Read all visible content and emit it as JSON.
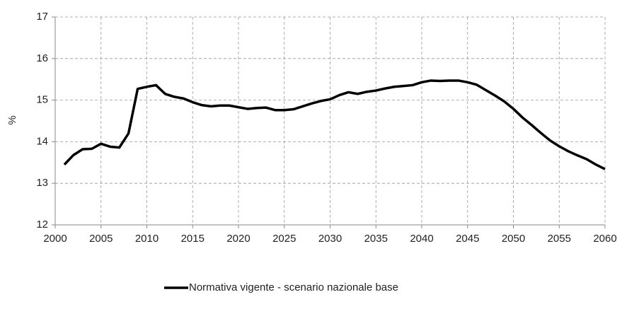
{
  "chart_data": {
    "type": "line",
    "y_label": "%",
    "x": [
      2001,
      2002,
      2003,
      2004,
      2005,
      2006,
      2007,
      2008,
      2009,
      2010,
      2011,
      2012,
      2013,
      2014,
      2015,
      2016,
      2017,
      2018,
      2019,
      2020,
      2021,
      2022,
      2023,
      2024,
      2025,
      2026,
      2027,
      2028,
      2029,
      2030,
      2031,
      2032,
      2033,
      2034,
      2035,
      2036,
      2037,
      2038,
      2039,
      2040,
      2041,
      2042,
      2043,
      2044,
      2045,
      2046,
      2047,
      2048,
      2049,
      2050,
      2051,
      2052,
      2053,
      2054,
      2055,
      2056,
      2057,
      2058,
      2059,
      2060
    ],
    "series": [
      {
        "name": "Normativa vigente  - scenario nazionale base",
        "color": "#000000",
        "values": [
          13.45,
          13.68,
          13.82,
          13.83,
          13.95,
          13.88,
          13.86,
          14.2,
          15.27,
          15.32,
          15.36,
          15.15,
          15.08,
          15.04,
          14.95,
          14.88,
          14.85,
          14.87,
          14.87,
          14.83,
          14.79,
          14.81,
          14.82,
          14.76,
          14.76,
          14.78,
          14.85,
          14.92,
          14.98,
          15.02,
          15.12,
          15.19,
          15.15,
          15.2,
          15.23,
          15.28,
          15.32,
          15.34,
          15.36,
          15.43,
          15.47,
          15.46,
          15.47,
          15.47,
          15.43,
          15.37,
          15.24,
          15.11,
          14.97,
          14.79,
          14.58,
          14.4,
          14.21,
          14.03,
          13.89,
          13.77,
          13.67,
          13.58,
          13.45,
          13.34
        ]
      }
    ],
    "xlim": [
      2000,
      2060
    ],
    "xticks": [
      2000,
      2005,
      2010,
      2015,
      2020,
      2025,
      2030,
      2035,
      2040,
      2045,
      2050,
      2055,
      2060
    ],
    "ylim": [
      12,
      17
    ],
    "yticks": [
      12,
      13,
      14,
      15,
      16,
      17
    ],
    "grid": true,
    "legend": "bottom"
  }
}
